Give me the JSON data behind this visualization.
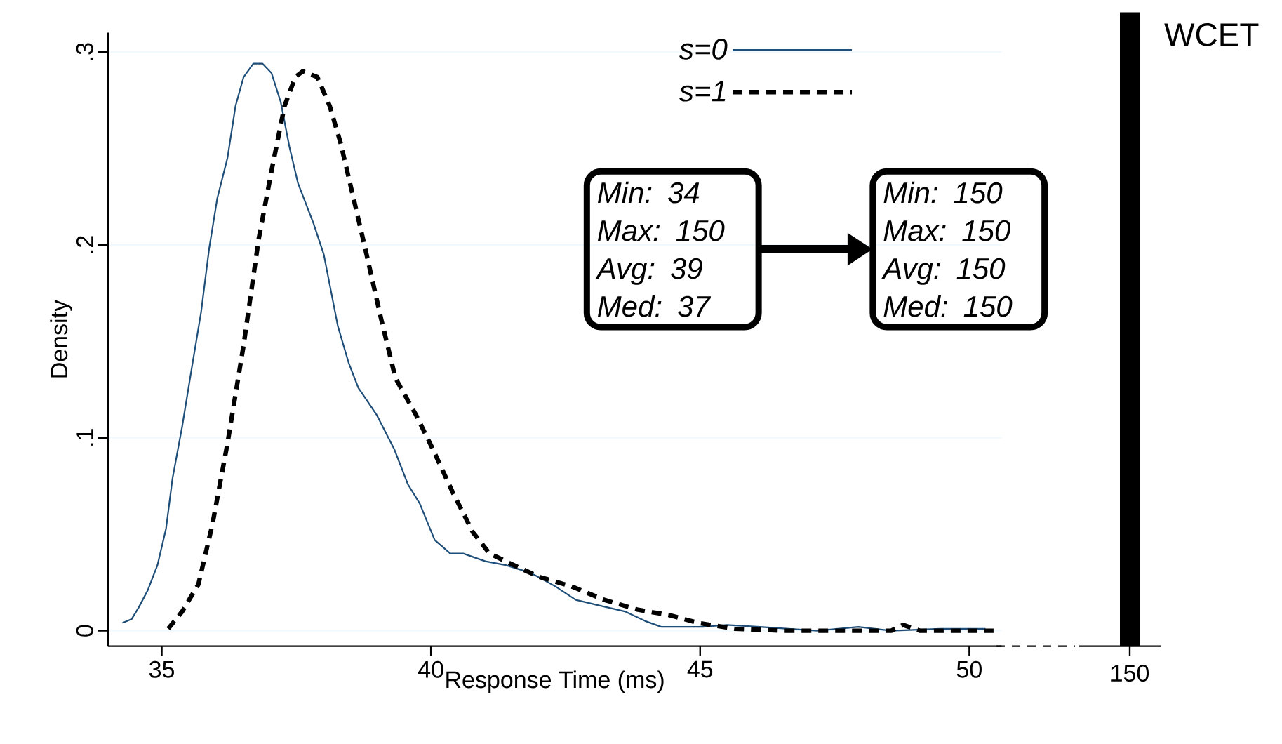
{
  "chart_data": [
    {
      "type": "line",
      "xlabel": "Response Time (ms)",
      "ylabel": "Density",
      "xlim": [
        34,
        50.6
      ],
      "ylim": [
        -0.008,
        0.31
      ],
      "xticks": [
        35,
        40,
        45,
        50
      ],
      "yticks": [
        0,
        {
          "value": 0.1,
          "label": ".1"
        },
        {
          "value": 0.2,
          "label": ".2"
        },
        {
          "value": 0.3,
          "label": ".3"
        }
      ],
      "grid": "y",
      "legend": "top right",
      "series": [
        {
          "name": "s=0",
          "color": "#1f4e79",
          "line_style": "solid",
          "x": [
            34.27,
            34.44,
            34.57,
            34.74,
            34.92,
            35.08,
            35.2,
            35.38,
            35.55,
            35.73,
            35.88,
            36.03,
            36.22,
            36.37,
            36.52,
            36.7,
            36.87,
            37.04,
            37.21,
            37.37,
            37.53,
            37.82,
            38.01,
            38.27,
            38.47,
            38.65,
            38.99,
            39.32,
            39.57,
            39.79,
            40.07,
            40.36,
            40.6,
            41.01,
            41.39,
            41.85,
            42.31,
            42.69,
            43.14,
            43.6,
            43.98,
            44.28,
            45.05,
            45.5,
            46.11,
            47.18,
            47.94,
            48.55,
            49.46,
            50.3
          ],
          "values": [
            0.004,
            0.006,
            0.012,
            0.021,
            0.034,
            0.053,
            0.079,
            0.106,
            0.135,
            0.165,
            0.198,
            0.224,
            0.245,
            0.272,
            0.287,
            0.294,
            0.294,
            0.289,
            0.274,
            0.251,
            0.232,
            0.211,
            0.195,
            0.158,
            0.139,
            0.126,
            0.112,
            0.094,
            0.076,
            0.066,
            0.047,
            0.04,
            0.04,
            0.036,
            0.034,
            0.03,
            0.023,
            0.016,
            0.013,
            0.01,
            0.005,
            0.002,
            0.002,
            0.003,
            0.002,
            0.0,
            0.002,
            0.0,
            0.001,
            0.001
          ]
        },
        {
          "name": "s=1",
          "color": "#000000",
          "line_style": "dashed",
          "x": [
            35.12,
            35.38,
            35.68,
            35.94,
            36.22,
            36.52,
            36.8,
            37.05,
            37.28,
            37.48,
            37.62,
            37.89,
            38.12,
            38.32,
            38.53,
            38.78,
            39.08,
            39.34,
            39.72,
            40.02,
            40.4,
            40.78,
            41.09,
            41.54,
            42.0,
            42.61,
            43.22,
            43.83,
            44.44,
            44.97,
            45.65,
            46.57,
            47.79,
            48.55,
            48.77,
            49.08,
            50.45
          ],
          "values": [
            0.001,
            0.01,
            0.024,
            0.055,
            0.097,
            0.148,
            0.203,
            0.24,
            0.272,
            0.287,
            0.29,
            0.287,
            0.272,
            0.253,
            0.228,
            0.198,
            0.161,
            0.131,
            0.112,
            0.095,
            0.072,
            0.051,
            0.04,
            0.034,
            0.028,
            0.023,
            0.016,
            0.011,
            0.008,
            0.004,
            0.001,
            0.0,
            0.0,
            0.0,
            0.003,
            0.0,
            0.0
          ]
        }
      ],
      "annotations": [
        "Min:  34",
        "Max: 150",
        "Avg:  39",
        "Med:  37",
        "Min:  150",
        "Max:  150",
        "Avg:  150",
        "Med: 150"
      ]
    },
    {
      "type": "other",
      "annotations": [
        "150",
        "WCET"
      ]
    }
  ]
}
